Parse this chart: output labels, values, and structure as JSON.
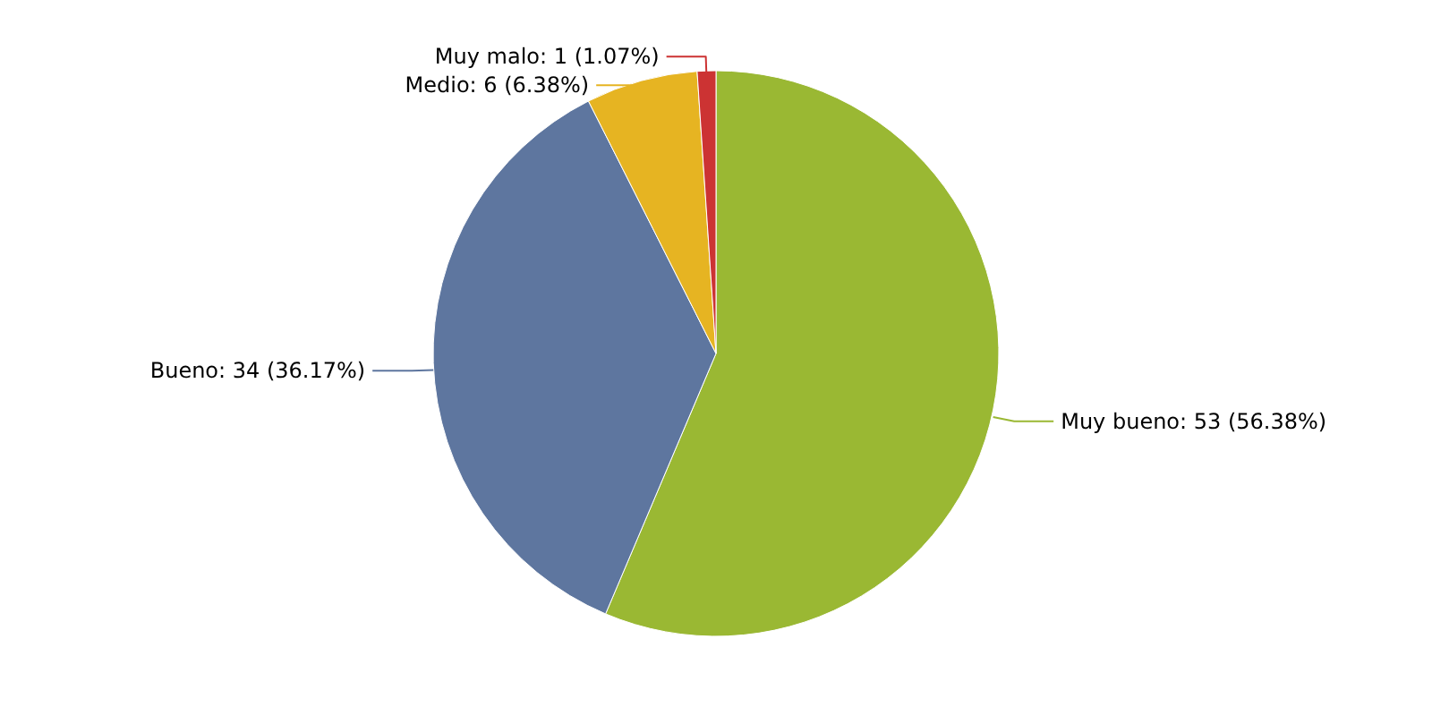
{
  "chart_data": {
    "type": "pie",
    "categories": [
      "Muy bueno",
      "Bueno",
      "Medio",
      "Muy malo"
    ],
    "values": [
      53,
      34,
      6,
      1
    ],
    "colors": [
      "#9ab833",
      "#5e769f",
      "#e6b422",
      "#cc3333"
    ],
    "value_labels": [
      "53 (56.38%)",
      "34 (36.17%)",
      "6 (6.38%)",
      "1 (1.07%)"
    ]
  }
}
